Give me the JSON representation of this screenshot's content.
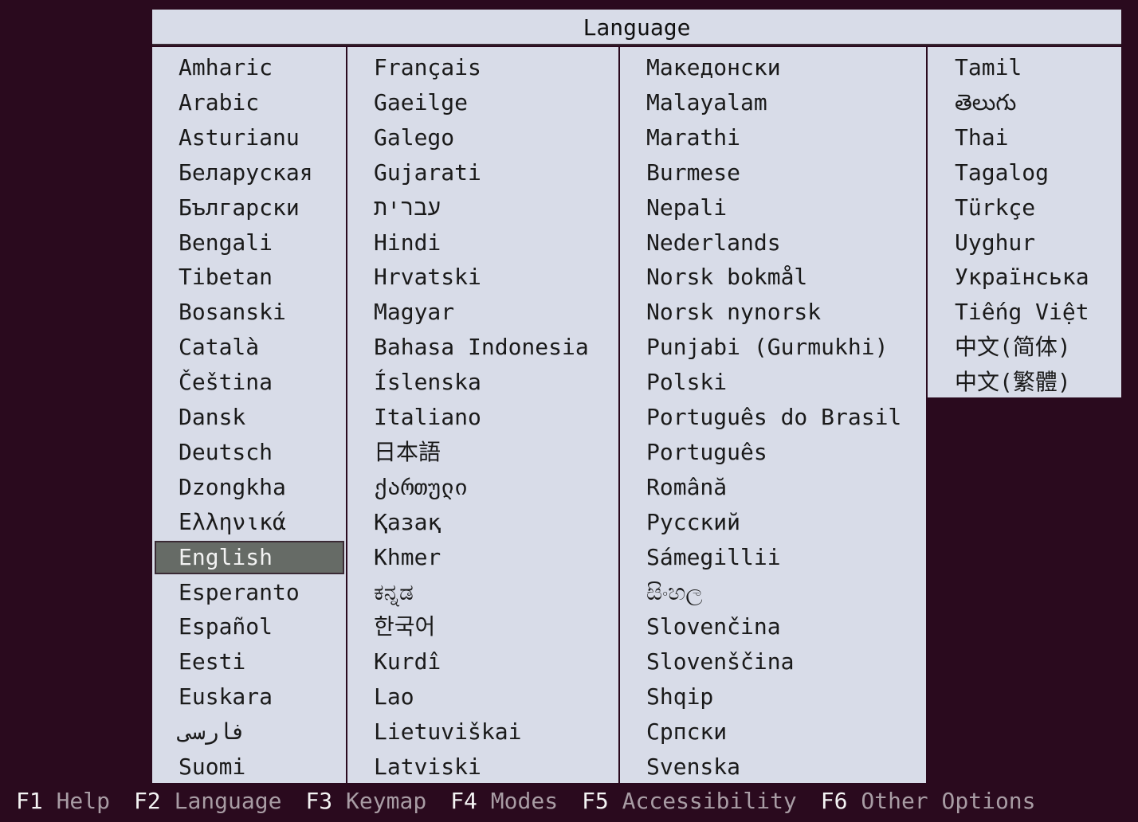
{
  "title": "Language",
  "selected": "English",
  "colors": {
    "background": "#2a0a1e",
    "panel": "#d8dce8",
    "selection": "#666b66"
  },
  "columns": [
    [
      "Amharic",
      "Arabic",
      "Asturianu",
      "Беларуская",
      "Български",
      "Bengali",
      "Tibetan",
      "Bosanski",
      "Català",
      "Čeština",
      "Dansk",
      "Deutsch",
      "Dzongkha",
      "Ελληνικά",
      "English",
      "Esperanto",
      "Español",
      "Eesti",
      "Euskara",
      "فارسی",
      "Suomi"
    ],
    [
      "Français",
      "Gaeilge",
      "Galego",
      "Gujarati",
      "עברית",
      "Hindi",
      "Hrvatski",
      "Magyar",
      "Bahasa Indonesia",
      "Íslenska",
      "Italiano",
      "日本語",
      "ქართული",
      "Қазақ",
      "Khmer",
      "ಕನ್ನಡ",
      "한국어",
      "Kurdî",
      "Lao",
      "Lietuviškai",
      "Latviski"
    ],
    [
      "Македонски",
      "Malayalam",
      "Marathi",
      "Burmese",
      "Nepali",
      "Nederlands",
      "Norsk bokmål",
      "Norsk nynorsk",
      "Punjabi (Gurmukhi)",
      "Polski",
      "Português do Brasil",
      "Português",
      "Română",
      "Русский",
      "Sámegillii",
      "සිංහල",
      "Slovenčina",
      "Slovenščina",
      "Shqip",
      "Српски",
      "Svenska"
    ],
    [
      "Tamil",
      "తెలుగు",
      "Thai",
      "Tagalog",
      "Türkçe",
      "Uyghur",
      "Українська",
      "Tiếng Việt",
      "中文(简体)",
      "中文(繁體)"
    ]
  ],
  "footer": [
    {
      "key": "F1",
      "label": "Help"
    },
    {
      "key": "F2",
      "label": "Language"
    },
    {
      "key": "F3",
      "label": "Keymap"
    },
    {
      "key": "F4",
      "label": "Modes"
    },
    {
      "key": "F5",
      "label": "Accessibility"
    },
    {
      "key": "F6",
      "label": "Other Options"
    }
  ]
}
